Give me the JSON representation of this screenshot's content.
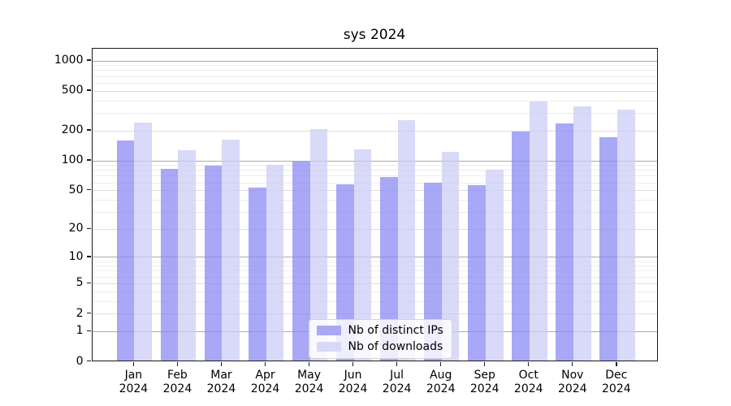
{
  "figure": {
    "title": "sys 2024"
  },
  "chart_data": {
    "type": "bar",
    "title": "sys 2024",
    "categories": [
      "Jan 2024",
      "Feb 2024",
      "Mar 2024",
      "Apr 2024",
      "May 2024",
      "Jun 2024",
      "Jul 2024",
      "Aug 2024",
      "Sep 2024",
      "Oct 2024",
      "Nov 2024",
      "Dec 2024"
    ],
    "series": [
      {
        "name": "Nb of distinct IPs",
        "color": "#8686f4",
        "legend_color": "#a8a8f4",
        "values": [
          160,
          83,
          90,
          54,
          98,
          58,
          68,
          60,
          57,
          197,
          237,
          174
        ]
      },
      {
        "name": "Nb of downloads",
        "color": "#cacaf5",
        "legend_color": "#d9d9f7",
        "values": [
          240,
          128,
          164,
          91,
          207,
          129,
          257,
          124,
          82,
          392,
          350,
          328
        ]
      }
    ],
    "bar_alpha": 0.72,
    "yscale": "log1p",
    "ylim": [
      0,
      1320
    ],
    "yticks": [
      0,
      1,
      2,
      5,
      10,
      20,
      50,
      100,
      200,
      500,
      1000
    ],
    "major_gridline_values": [
      1,
      10,
      100,
      1000
    ],
    "grid": true,
    "legend_position": "lower center",
    "xlabel": "",
    "ylabel": ""
  }
}
